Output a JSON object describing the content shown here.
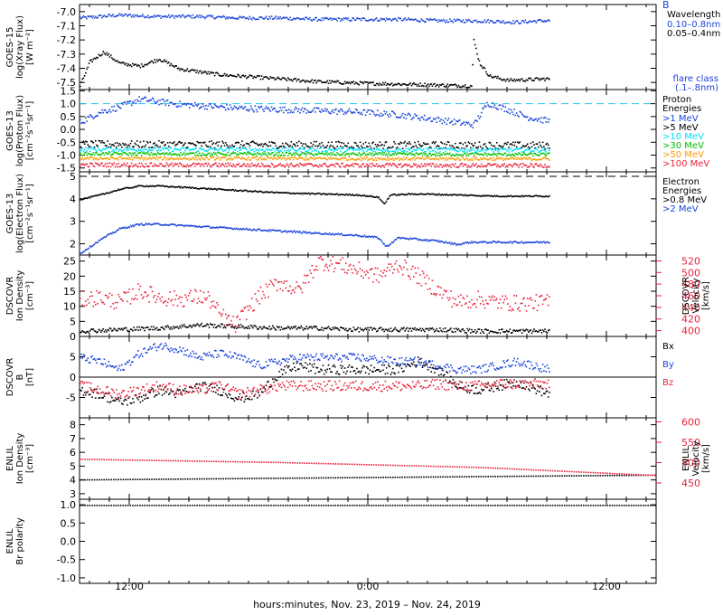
{
  "figure": {
    "xlabel": "hours:minutes, Nov. 23, 2019 – Nov. 24, 2019",
    "x_ticks": [
      "12:00",
      "0:00",
      "12:00"
    ],
    "corner_marker": "B",
    "colors": {
      "black": "#000000",
      "blue": "#1a45d8",
      "cyan": "#00e0ff",
      "green": "#00c000",
      "orange": "#ff9900",
      "red": "#e8223a",
      "dash_cyan": "#29c6f0"
    }
  },
  "chart_data": [
    {
      "type": "scatter",
      "ylabel": [
        "GOES-15",
        "log(Xray Flux)",
        "[W m⁻²]"
      ],
      "ylim": [
        -7.55,
        -6.95
      ],
      "yticks": [
        -7.0,
        -7.1,
        -7.2,
        -7.3,
        -7.4,
        -7.5
      ],
      "ytick_labels": [
        "-7.0",
        "-7.1",
        "-7.2",
        "-7.3",
        "-7.4",
        "-7.5"
      ],
      "legend_title": "Wavelength",
      "legend": [
        {
          "label": "0.10–0.8nm",
          "color": "#1a45d8"
        },
        {
          "label": "0.05–0.4nm",
          "color": "#000000"
        }
      ],
      "extra_label": [
        "flare class",
        "(.1–.8nm)"
      ],
      "series": [
        {
          "name": "0.10–0.8nm",
          "color": "#1a45d8",
          "x": [
            0,
            2,
            4,
            6,
            8,
            10,
            12,
            14,
            16,
            18,
            20,
            22,
            23.2,
            23.6
          ],
          "y": [
            -7.04,
            -7.02,
            -7.03,
            -7.03,
            -7.04,
            -7.04,
            -7.05,
            -7.05,
            -7.05,
            -7.06,
            -7.06,
            -7.07,
            -7.06,
            -7.06
          ],
          "noise": 0.012
        },
        {
          "name": "0.05–0.4nm",
          "color": "#000000",
          "x": [
            0,
            0.5,
            1.2,
            2,
            3,
            4,
            5,
            6,
            7,
            8,
            10,
            12,
            14,
            17,
            19.7,
            19.8,
            20.1,
            20.6,
            21.5,
            23.6
          ],
          "y": [
            -7.52,
            -7.35,
            -7.28,
            -7.36,
            -7.38,
            -7.33,
            -7.4,
            -7.42,
            -7.44,
            -7.45,
            -7.47,
            -7.49,
            -7.5,
            -7.51,
            -7.52,
            -7.2,
            -7.36,
            -7.45,
            -7.48,
            -7.47
          ],
          "noise": 0.012
        }
      ]
    },
    {
      "type": "scatter",
      "ylabel": [
        "GOES-13",
        "log(Proton Flux)",
        "[cm⁻²s⁻¹sr⁻¹]"
      ],
      "ylim": [
        -1.65,
        1.55
      ],
      "yticks": [
        1.5,
        1.0,
        0.5,
        0.0,
        -0.5,
        -1.0,
        -1.5
      ],
      "ytick_labels": [
        "1.5",
        "1.0",
        "0.5",
        "0.0",
        "-0.5",
        "-1.0",
        "-1.5"
      ],
      "threshold": 1.0,
      "legend_title": [
        "Proton",
        "Energies"
      ],
      "legend": [
        {
          "label": ">1 MeV",
          "color": "#1a45d8"
        },
        {
          "label": ">5 MeV",
          "color": "#000000"
        },
        {
          "label": ">10 MeV",
          "color": "#00e0ff"
        },
        {
          "label": ">30 MeV",
          "color": "#00c000"
        },
        {
          "label": ">50 MeV",
          "color": "#ff9900"
        },
        {
          "label": ">100 MeV",
          "color": "#e8223a"
        }
      ],
      "series": [
        {
          "name": ">1 MeV",
          "color": "#1a45d8",
          "x": [
            0,
            1,
            2,
            3,
            4,
            5,
            6,
            8,
            10,
            12,
            14,
            16,
            18,
            19.8,
            20.5,
            21.5,
            22.5,
            23.6
          ],
          "y": [
            0.3,
            0.7,
            0.9,
            1.2,
            1.1,
            1.0,
            0.95,
            0.85,
            0.8,
            0.75,
            0.7,
            0.6,
            0.4,
            0.2,
            1.05,
            0.8,
            0.5,
            0.35
          ],
          "noise": 0.12
        },
        {
          "name": ">5 MeV",
          "color": "#000000",
          "x": [
            0,
            23.6
          ],
          "y": [
            -0.55,
            -0.6
          ],
          "noise": 0.14
        },
        {
          "name": ">10 MeV",
          "color": "#00e0ff",
          "x": [
            0,
            23.6
          ],
          "y": [
            -0.75,
            -0.78
          ],
          "noise": 0.08
        },
        {
          "name": ">30 MeV",
          "color": "#00c000",
          "x": [
            0,
            23.6
          ],
          "y": [
            -0.92,
            -0.95
          ],
          "noise": 0.06
        },
        {
          "name": ">50 MeV",
          "color": "#ff9900",
          "x": [
            0,
            23.6
          ],
          "y": [
            -1.1,
            -1.12
          ],
          "noise": 0.06
        },
        {
          "name": ">100 MeV",
          "color": "#e8223a",
          "x": [
            0,
            23.6
          ],
          "y": [
            -1.35,
            -1.38
          ],
          "noise": 0.08
        }
      ]
    },
    {
      "type": "line",
      "ylabel": [
        "GOES-13",
        "log(Electron Flux)",
        "[cm⁻²s⁻¹sr⁻¹]"
      ],
      "ylim": [
        1.5,
        5.2
      ],
      "yticks": [
        2,
        3,
        4,
        5
      ],
      "ytick_labels": [
        "2",
        "3",
        "4",
        "5"
      ],
      "threshold": 5,
      "legend_title": [
        "Electron",
        "Energies"
      ],
      "legend": [
        {
          "label": ">0.8 MeV",
          "color": "#000000"
        },
        {
          "label": ">2 MeV",
          "color": "#1a45d8"
        }
      ],
      "series": [
        {
          "name": ">0.8 MeV",
          "color": "#000000",
          "x": [
            0,
            1,
            2,
            3,
            4,
            6,
            8,
            10,
            12,
            14,
            15,
            15.3,
            15.6,
            17,
            19,
            21,
            23.6
          ],
          "y": [
            4.0,
            4.2,
            4.45,
            4.6,
            4.6,
            4.5,
            4.4,
            4.3,
            4.25,
            4.2,
            4.1,
            3.8,
            4.2,
            4.25,
            4.2,
            4.15,
            4.15
          ],
          "noise": 0.03
        },
        {
          "name": ">2 MeV",
          "color": "#1a45d8",
          "x": [
            0,
            1,
            2,
            3,
            4,
            6,
            8,
            10,
            12,
            14,
            15,
            15.4,
            16,
            18,
            19,
            19.6,
            20.5,
            22,
            23.6
          ],
          "y": [
            1.6,
            2.2,
            2.7,
            2.9,
            2.9,
            2.8,
            2.7,
            2.6,
            2.5,
            2.4,
            2.3,
            1.9,
            2.3,
            2.15,
            2.0,
            2.1,
            2.1,
            2.1,
            2.1
          ],
          "noise": 0.04
        }
      ]
    },
    {
      "type": "scatter",
      "ylabel": [
        "DSCOVR",
        "Ion Density",
        "[cm⁻³]"
      ],
      "ylim": [
        0,
        27
      ],
      "yticks": [
        0,
        5,
        10,
        15,
        20,
        25
      ],
      "ytick_labels": [
        "0",
        "5",
        "10",
        "15",
        "20",
        "25"
      ],
      "y2label": [
        "DSCOVR",
        "Velocity",
        "[km/s]"
      ],
      "y2lim": [
        390,
        530
      ],
      "y2ticks": [
        400,
        420,
        440,
        460,
        480,
        500,
        520
      ],
      "y2tick_labels": [
        "400",
        "420",
        "440",
        "460",
        "480",
        "500",
        "520"
      ],
      "series": [
        {
          "name": "density",
          "color": "#000000",
          "x": [
            0,
            2,
            4,
            6,
            8,
            10,
            12,
            14,
            16,
            18,
            20,
            23.6
          ],
          "y": [
            2,
            2.5,
            3,
            4,
            3.5,
            3,
            3,
            2.5,
            2.5,
            2.5,
            2,
            2
          ],
          "noise": 0.7
        },
        {
          "name": "velocity",
          "color": "#e8223a",
          "axis": "y2",
          "x": [
            0,
            1,
            2,
            3,
            4,
            5,
            6,
            6.5,
            7,
            7.8,
            8.5,
            9,
            10,
            11,
            12,
            13,
            14,
            15,
            16,
            17,
            18,
            19,
            20,
            21,
            22,
            23.6
          ],
          "y": [
            455,
            458,
            450,
            470,
            458,
            455,
            460,
            455,
            430,
            410,
            440,
            460,
            485,
            470,
            520,
            515,
            505,
            495,
            515,
            495,
            470,
            450,
            455,
            450,
            448,
            450
          ],
          "noise": 14
        }
      ]
    },
    {
      "type": "scatter",
      "ylabel": [
        "DSCOVR",
        "B",
        "[nT]"
      ],
      "ylim": [
        -10,
        10
      ],
      "yticks": [
        -5,
        0,
        5
      ],
      "ytick_labels": [
        "-5",
        "0",
        "5"
      ],
      "zero_line": 0,
      "legend": [
        {
          "label": "Bx",
          "color": "#000000"
        },
        {
          "label": "By",
          "color": "#1a45d8"
        },
        {
          "label": "Bz",
          "color": "#e8223a"
        }
      ],
      "series": [
        {
          "name": "Bx",
          "color": "#000000",
          "x": [
            0,
            1,
            2,
            3,
            4,
            5,
            6,
            7,
            8,
            9,
            10,
            11,
            12,
            14,
            16,
            17,
            18,
            19,
            20,
            21,
            22,
            23.6
          ],
          "y": [
            -3,
            -4,
            -6,
            -5,
            -3,
            -4,
            -2,
            -3,
            -5,
            -4,
            1,
            3,
            2,
            2,
            2,
            4,
            2,
            -2,
            -3,
            -2,
            -1,
            -4
          ],
          "noise": 1.2
        },
        {
          "name": "By",
          "color": "#1a45d8",
          "x": [
            0,
            1,
            2,
            3,
            4,
            5,
            6,
            7,
            8,
            9,
            10,
            11,
            12,
            14,
            16,
            17,
            18,
            19,
            20,
            21,
            22,
            23.6
          ],
          "y": [
            5,
            4,
            2,
            6,
            8,
            7,
            5,
            6,
            5,
            3,
            4,
            5,
            5,
            5,
            4,
            4,
            3,
            2,
            2,
            3,
            4,
            2
          ],
          "noise": 1.0
        },
        {
          "name": "Bz",
          "color": "#e8223a",
          "x": [
            0,
            1,
            2,
            3,
            4,
            5,
            6,
            7,
            8,
            9,
            10,
            11,
            12,
            14,
            16,
            17,
            18,
            19,
            20,
            21,
            22,
            23.6
          ],
          "y": [
            -2,
            -3,
            -4,
            -3,
            -2,
            -3,
            -3,
            -2,
            -4,
            -3,
            -2,
            -2,
            -2,
            -2,
            -2,
            -2,
            -1.5,
            -2,
            -2,
            -1.5,
            -1.5,
            -1.5
          ],
          "noise": 1.3
        }
      ]
    },
    {
      "type": "line",
      "ylabel": [
        "ENLIL",
        "Ion Density",
        "[cm⁻³]"
      ],
      "ylim": [
        2.6,
        8.5
      ],
      "yticks": [
        3,
        4,
        5,
        6,
        7,
        8
      ],
      "ytick_labels": [
        "3",
        "4",
        "5",
        "6",
        "7",
        "8"
      ],
      "y2label": [
        "ENLIL",
        "Velocity",
        "[km/s]"
      ],
      "y2lim": [
        410,
        610
      ],
      "y2ticks": [
        450,
        500,
        550,
        600
      ],
      "y2tick_labels": [
        "450",
        "500",
        "550",
        "600"
      ],
      "series": [
        {
          "name": "density",
          "color": "#000000",
          "x": [
            0,
            29
          ],
          "y": [
            4.05,
            4.4
          ],
          "dotted": true
        },
        {
          "name": "velocity",
          "color": "#e8223a",
          "axis": "y2",
          "x": [
            0,
            10,
            20,
            29
          ],
          "y": [
            510,
            502,
            490,
            470
          ],
          "dotted": true
        }
      ]
    },
    {
      "type": "line",
      "ylabel": [
        "ENLIL",
        "Br polarity"
      ],
      "ylim": [
        -1.15,
        1.15
      ],
      "yticks": [
        1.0,
        0.5,
        0.0,
        -0.5,
        -1.0
      ],
      "ytick_labels": [
        "1.0",
        "0.5",
        "0.0",
        "-0.5",
        "-1.0"
      ],
      "series": [
        {
          "name": "polarity",
          "color": "#000000",
          "x": [
            0,
            29
          ],
          "y": [
            1.0,
            1.0
          ],
          "dotted": true
        }
      ]
    }
  ]
}
